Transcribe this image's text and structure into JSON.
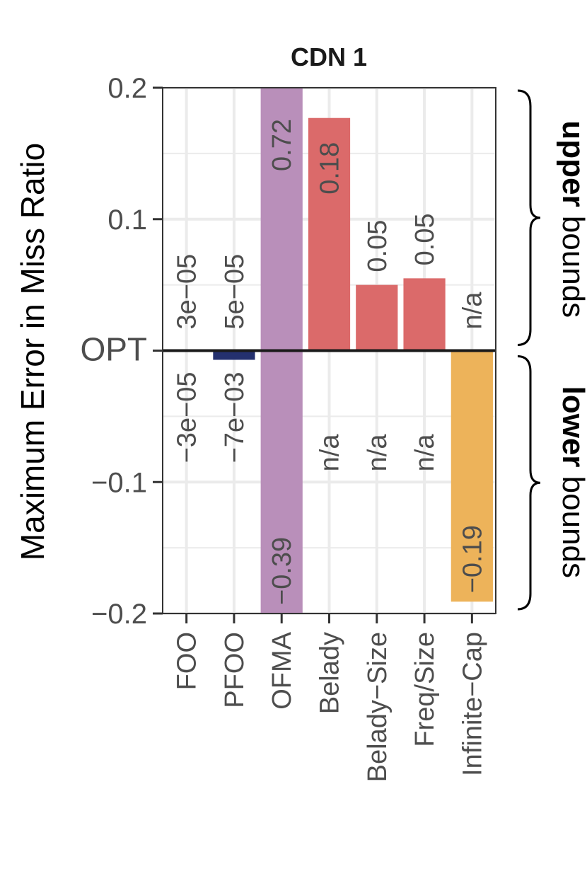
{
  "chart_data": {
    "type": "bar",
    "title": "CDN 1",
    "ylabel": "Maximum Error in Miss Ratio",
    "ylim": [
      -0.2,
      0.2
    ],
    "yticks": [
      {
        "value": 0.2,
        "label": "0.2"
      },
      {
        "value": 0.1,
        "label": "0.1"
      },
      {
        "value": 0,
        "label": "OPT"
      },
      {
        "value": -0.1,
        "label": "−0.1"
      },
      {
        "value": -0.2,
        "label": "−0.2"
      }
    ],
    "categories": [
      "FOO",
      "PFOO",
      "OFMA",
      "Belady",
      "Belady−Size",
      "Freq/Size",
      "Infinite−Cap"
    ],
    "upper": {
      "values": [
        3e-05,
        5e-05,
        0.72,
        0.177,
        0.05,
        0.055,
        null
      ],
      "labels": [
        "3e−05",
        "5e−05",
        "0.72",
        "0.18",
        "0.05",
        "0.05",
        "n/a"
      ]
    },
    "lower": {
      "values": [
        -3e-05,
        -0.007,
        -0.39,
        null,
        null,
        null,
        -0.191
      ],
      "labels": [
        "−3e−05",
        "−7e−03",
        "−0.39",
        "n/a",
        "n/a",
        "n/a",
        "−0.19"
      ]
    },
    "colors": {
      "FOO": "#24306e",
      "PFOO": "#24306e",
      "OFMA": "#b98fba",
      "Belady": "#db6a6a",
      "Belady−Size": "#db6a6a",
      "Freq/Size": "#db6a6a",
      "Infinite−Cap": "#edb35a"
    },
    "grid": true,
    "side_labels": {
      "upper": {
        "bold": "upper",
        "normal": " bounds"
      },
      "lower": {
        "bold": "lower",
        "normal": " bounds"
      }
    }
  }
}
